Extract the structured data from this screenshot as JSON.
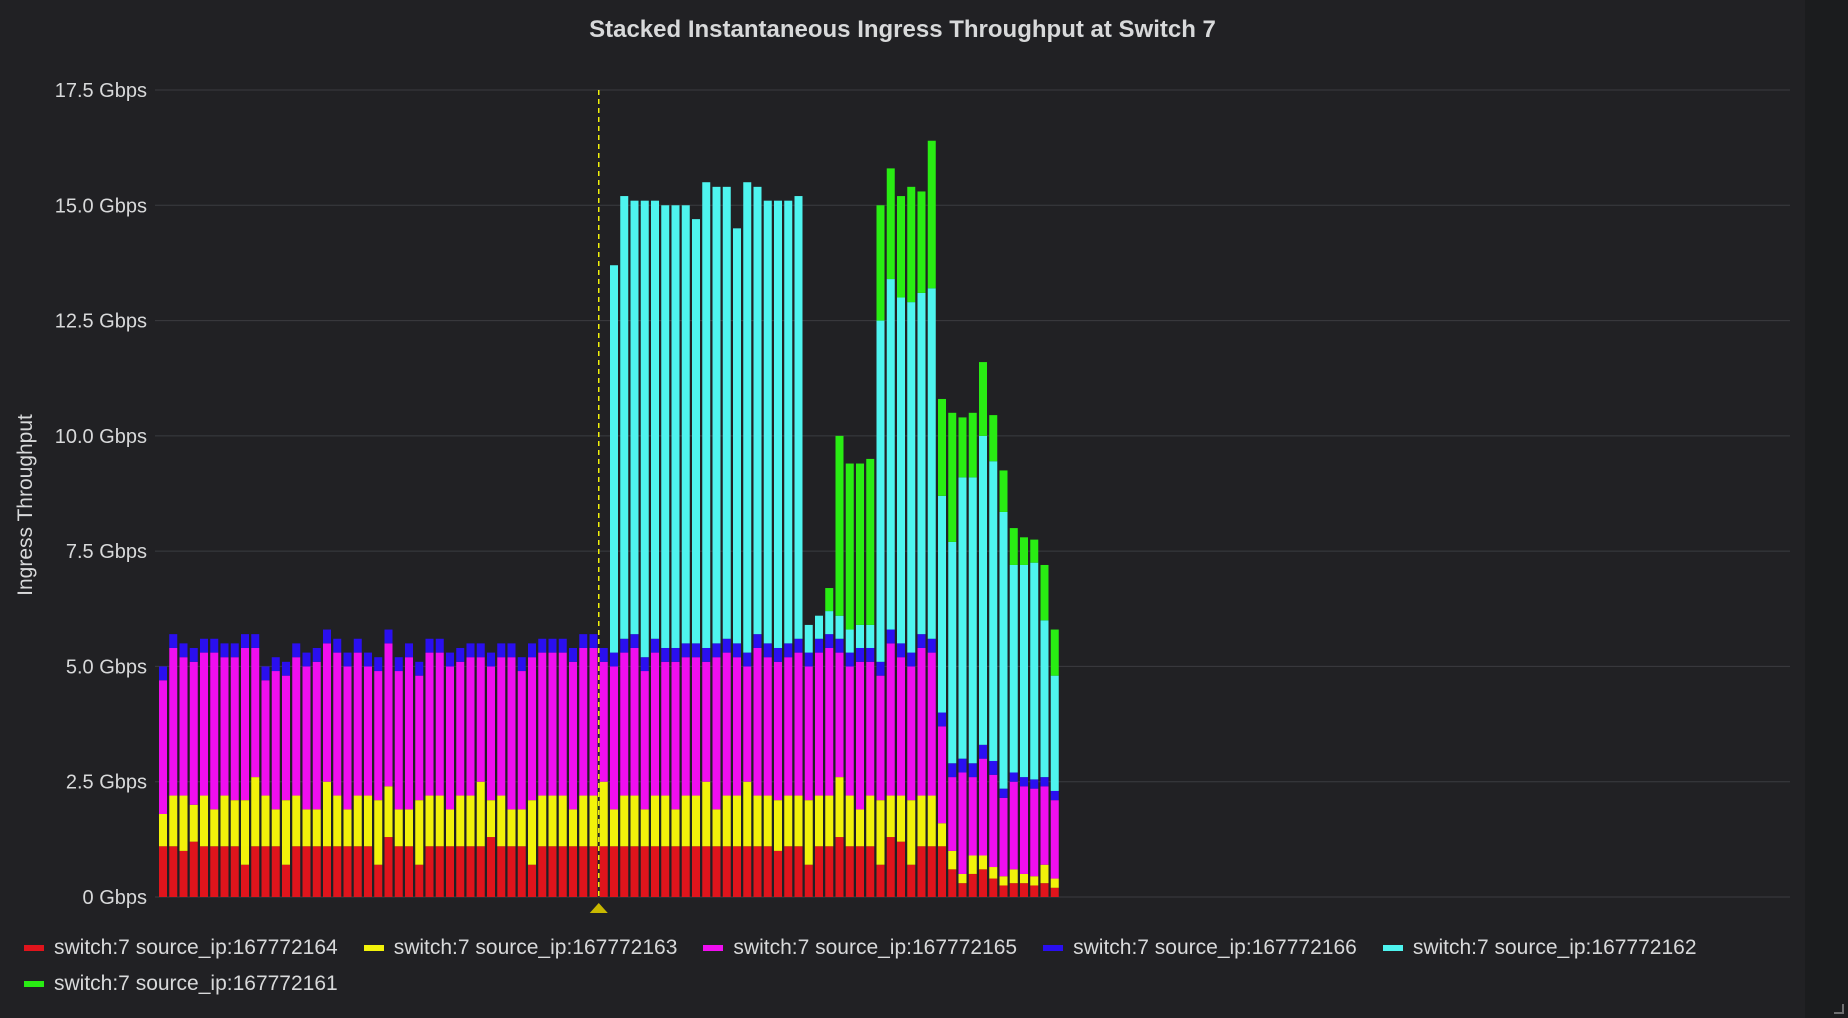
{
  "chart_data": {
    "type": "bar",
    "stacked": true,
    "title": "Stacked Instantaneous Ingress Throughput at Switch 7",
    "ylabel": "Ingress Throughput",
    "xlabel": "",
    "ylim": [
      0,
      17.5
    ],
    "yticks": [
      "0 Gbps",
      "2.5 Gbps",
      "5.0 Gbps",
      "7.5 Gbps",
      "10.0 Gbps",
      "12.5 Gbps",
      "15.0 Gbps",
      "17.5 Gbps"
    ],
    "ytick_values": [
      0,
      2.5,
      5,
      7.5,
      10,
      12.5,
      15,
      17.5
    ],
    "grid": true,
    "legend_position": "bottom",
    "marker_bar_index": 43,
    "series": [
      {
        "name": "switch:7 source_ip:167772164",
        "color": "#e0141c",
        "values": [
          1.1,
          1.1,
          1.0,
          1.2,
          1.1,
          1.1,
          1.1,
          1.1,
          0.7,
          1.1,
          1.1,
          1.1,
          0.7,
          1.1,
          1.1,
          1.1,
          1.1,
          1.1,
          1.1,
          1.1,
          1.1,
          0.7,
          1.3,
          1.1,
          1.1,
          0.7,
          1.1,
          1.1,
          1.1,
          1.1,
          1.1,
          1.1,
          1.3,
          1.1,
          1.1,
          1.1,
          0.7,
          1.1,
          1.1,
          1.1,
          1.1,
          1.1,
          1.1,
          1.1,
          1.1,
          1.1,
          1.1,
          1.1,
          1.1,
          1.1,
          1.1,
          1.1,
          1.1,
          1.1,
          1.1,
          1.1,
          1.1,
          1.1,
          1.1,
          1.1,
          1.0,
          1.1,
          1.1,
          0.7,
          1.1,
          1.1,
          1.3,
          1.1,
          1.1,
          1.1,
          0.7,
          1.3,
          1.2,
          0.7,
          1.1,
          1.1,
          1.1,
          0.6,
          0.3,
          0.5,
          0.6,
          0.4,
          0.25,
          0.3,
          0.3,
          0.25,
          0.3,
          0.2
        ]
      },
      {
        "name": "switch:7 source_ip:167772163",
        "color": "#f2f20a",
        "values": [
          0.7,
          1.1,
          1.2,
          0.8,
          1.1,
          0.8,
          1.1,
          1.0,
          1.4,
          1.5,
          1.1,
          0.8,
          1.4,
          1.1,
          0.8,
          0.8,
          1.4,
          1.1,
          0.8,
          1.1,
          1.1,
          1.4,
          1.1,
          0.8,
          0.8,
          1.4,
          1.1,
          1.1,
          0.8,
          1.1,
          1.1,
          1.4,
          0.8,
          1.1,
          0.8,
          0.8,
          1.4,
          1.1,
          1.1,
          1.1,
          0.8,
          1.1,
          1.1,
          1.4,
          0.8,
          1.1,
          1.1,
          0.8,
          1.1,
          1.1,
          0.8,
          1.1,
          1.1,
          1.4,
          0.8,
          1.1,
          1.1,
          1.4,
          1.1,
          1.1,
          1.1,
          1.1,
          1.1,
          1.4,
          1.1,
          1.1,
          1.3,
          1.1,
          0.8,
          1.1,
          1.4,
          0.9,
          1.0,
          1.4,
          1.1,
          1.1,
          0.5,
          0.4,
          0.2,
          0.4,
          0.3,
          0.25,
          0.2,
          0.3,
          0.2,
          0.2,
          0.4,
          0.2
        ]
      },
      {
        "name": "switch:7 source_ip:167772165",
        "color": "#f00ef0",
        "values": [
          2.9,
          3.2,
          3.0,
          3.1,
          3.1,
          3.4,
          3.0,
          3.1,
          3.3,
          2.8,
          2.5,
          3.0,
          2.7,
          3.0,
          3.1,
          3.2,
          3.0,
          3.1,
          3.1,
          3.1,
          2.8,
          2.8,
          3.1,
          3.0,
          3.3,
          2.7,
          3.1,
          3.1,
          3.1,
          2.9,
          3.0,
          2.7,
          2.9,
          3.0,
          3.3,
          3.0,
          3.1,
          3.1,
          3.1,
          3.1,
          3.2,
          3.2,
          3.2,
          2.6,
          3.1,
          3.1,
          3.2,
          3.0,
          3.1,
          2.9,
          3.2,
          3.0,
          3.0,
          2.6,
          3.3,
          3.1,
          3.0,
          2.5,
          3.2,
          3.0,
          3.0,
          3.0,
          3.1,
          2.9,
          3.1,
          3.2,
          2.7,
          2.8,
          3.2,
          2.9,
          2.7,
          3.3,
          3.0,
          2.9,
          3.2,
          3.1,
          2.1,
          1.6,
          2.2,
          1.7,
          2.1,
          2.0,
          1.7,
          1.9,
          1.9,
          1.9,
          1.7,
          1.7
        ]
      },
      {
        "name": "switch:7 source_ip:167772166",
        "color": "#2a0ff0",
        "values": [
          0.3,
          0.3,
          0.3,
          0.3,
          0.3,
          0.3,
          0.3,
          0.3,
          0.3,
          0.3,
          0.3,
          0.3,
          0.3,
          0.3,
          0.3,
          0.3,
          0.3,
          0.3,
          0.3,
          0.3,
          0.3,
          0.3,
          0.3,
          0.3,
          0.3,
          0.3,
          0.3,
          0.3,
          0.3,
          0.3,
          0.3,
          0.3,
          0.3,
          0.3,
          0.3,
          0.3,
          0.3,
          0.3,
          0.3,
          0.3,
          0.3,
          0.3,
          0.3,
          0.3,
          0.3,
          0.3,
          0.3,
          0.3,
          0.3,
          0.3,
          0.3,
          0.3,
          0.3,
          0.3,
          0.3,
          0.3,
          0.3,
          0.3,
          0.3,
          0.3,
          0.3,
          0.3,
          0.3,
          0.3,
          0.3,
          0.3,
          0.3,
          0.3,
          0.3,
          0.3,
          0.3,
          0.3,
          0.3,
          0.3,
          0.3,
          0.3,
          0.3,
          0.3,
          0.3,
          0.3,
          0.3,
          0.3,
          0.2,
          0.2,
          0.2,
          0.2,
          0.2,
          0.2
        ]
      },
      {
        "name": "switch:7 source_ip:167772162",
        "color": "#4ef4ef",
        "values": [
          0,
          0,
          0,
          0,
          0,
          0,
          0,
          0,
          0,
          0,
          0,
          0,
          0,
          0,
          0,
          0,
          0,
          0,
          0,
          0,
          0,
          0,
          0,
          0,
          0,
          0,
          0,
          0,
          0,
          0,
          0,
          0,
          0,
          0,
          0,
          0,
          0,
          0,
          0,
          0,
          0,
          0,
          0,
          0,
          8.4,
          9.6,
          9.4,
          9.9,
          9.5,
          9.6,
          9.6,
          9.5,
          9.2,
          10.1,
          9.9,
          9.8,
          9.0,
          10.2,
          9.7,
          9.6,
          9.7,
          9.6,
          9.6,
          0.6,
          0.5,
          0.5,
          0.5,
          0.5,
          0.5,
          0.5,
          7.4,
          7.6,
          7.5,
          7.6,
          7.4,
          7.6,
          4.7,
          4.8,
          6.1,
          6.2,
          6.7,
          6.5,
          6.0,
          4.5,
          4.6,
          4.7,
          3.4,
          2.5
        ]
      },
      {
        "name": "switch:7 source_ip:167772161",
        "color": "#29ec13",
        "values": [
          0,
          0,
          0,
          0,
          0,
          0,
          0,
          0,
          0,
          0,
          0,
          0,
          0,
          0,
          0,
          0,
          0,
          0,
          0,
          0,
          0,
          0,
          0,
          0,
          0,
          0,
          0,
          0,
          0,
          0,
          0,
          0,
          0,
          0,
          0,
          0,
          0,
          0,
          0,
          0,
          0,
          0,
          0,
          0,
          0,
          0,
          0,
          0,
          0,
          0,
          0,
          0,
          0,
          0,
          0,
          0,
          0,
          0,
          0,
          0,
          0,
          0,
          0,
          0,
          0,
          0.5,
          3.9,
          3.6,
          3.5,
          3.6,
          2.5,
          2.4,
          2.2,
          2.5,
          2.2,
          3.2,
          2.1,
          2.8,
          1.3,
          1.4,
          1.6,
          1.0,
          0.9,
          0.8,
          0.6,
          0.5,
          1.2,
          1.0
        ]
      }
    ]
  }
}
